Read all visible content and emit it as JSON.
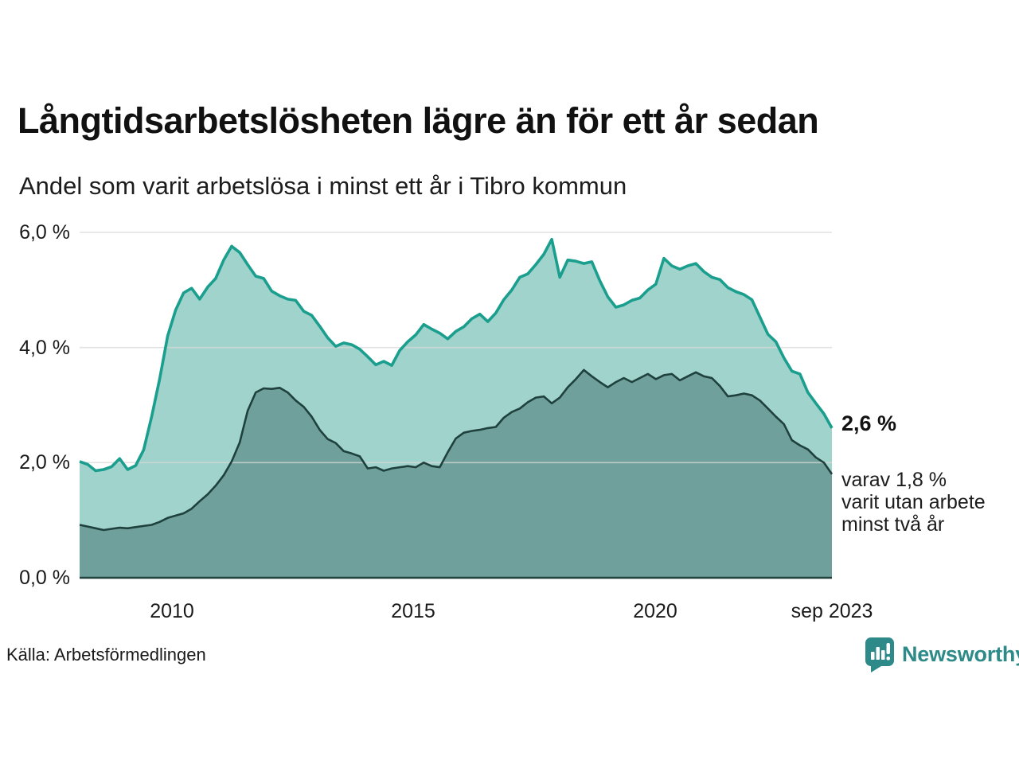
{
  "header": {
    "title": "Långtidsarbetslösheten lägre än för ett år sedan",
    "subtitle": "Andel som varit arbetslösa i minst ett år i Tibro kommun"
  },
  "annotations": {
    "latest_total": "2,6 %",
    "sub_lines": [
      "varav 1,8 %",
      "varit utan arbete",
      "minst två år"
    ]
  },
  "footer": {
    "source": "Källa: Arbetsförmedlingen",
    "brand": "Newsworthy"
  },
  "colors": {
    "total_stroke": "#1a9e8e",
    "total_fill": "#a0d3cb",
    "two_years_stroke": "#1f413d",
    "two_years_fill": "#70a09b",
    "gridline": "#d8d8d8",
    "baseline": "#22433f",
    "brand_teal": "#2d8a89"
  },
  "chart_data": {
    "type": "area",
    "title": "Långtidsarbetslösheten lägre än för ett år sedan",
    "subtitle": "Andel som varit arbetslösa i minst ett år i Tibro kommun",
    "unit": "%",
    "x_start": 2008.083,
    "x_end": 2023.667,
    "ylim": [
      0,
      6
    ],
    "grid": true,
    "legend_position": "none",
    "y_ticks": [
      {
        "label": "0,0 %",
        "value": 0
      },
      {
        "label": "2,0 %",
        "value": 2
      },
      {
        "label": "4,0 %",
        "value": 4
      },
      {
        "label": "6,0 %",
        "value": 6
      }
    ],
    "x_ticks": [
      {
        "label": "2010",
        "year": 2010
      },
      {
        "label": "2015",
        "year": 2015
      },
      {
        "label": "2020",
        "year": 2020
      },
      {
        "label": "sep 2023",
        "year": 2023.667
      }
    ],
    "series": [
      {
        "name": "arbetslösa minst ett år (totalt)",
        "latest_label": "2,6 %",
        "values": [
          2.02,
          1.97,
          1.86,
          1.88,
          1.93,
          2.07,
          1.88,
          1.95,
          2.22,
          2.8,
          3.45,
          4.2,
          4.65,
          4.95,
          5.03,
          4.84,
          5.05,
          5.2,
          5.52,
          5.76,
          5.65,
          5.44,
          5.24,
          5.2,
          4.98,
          4.9,
          4.84,
          4.82,
          4.63,
          4.56,
          4.37,
          4.17,
          4.02,
          4.08,
          4.05,
          3.97,
          3.84,
          3.7,
          3.76,
          3.69,
          3.95,
          4.1,
          4.22,
          4.4,
          4.32,
          4.25,
          4.15,
          4.28,
          4.36,
          4.5,
          4.58,
          4.45,
          4.6,
          4.83,
          5.0,
          5.22,
          5.28,
          5.44,
          5.62,
          5.88,
          5.22,
          5.52,
          5.5,
          5.46,
          5.49,
          5.16,
          4.88,
          4.7,
          4.74,
          4.82,
          4.86,
          5.0,
          5.1,
          5.55,
          5.42,
          5.36,
          5.42,
          5.46,
          5.32,
          5.22,
          5.18,
          5.04,
          4.97,
          4.92,
          4.83,
          4.53,
          4.23,
          4.1,
          3.82,
          3.59,
          3.54,
          3.22,
          3.03,
          2.85,
          2.6
        ]
      },
      {
        "name": "utan arbete minst två år",
        "latest_label": "1,8 %",
        "values": [
          0.92,
          0.89,
          0.86,
          0.83,
          0.85,
          0.87,
          0.86,
          0.88,
          0.9,
          0.92,
          0.97,
          1.04,
          1.08,
          1.12,
          1.2,
          1.33,
          1.45,
          1.6,
          1.78,
          2.02,
          2.35,
          2.9,
          3.22,
          3.29,
          3.28,
          3.3,
          3.22,
          3.08,
          2.97,
          2.8,
          2.57,
          2.41,
          2.34,
          2.2,
          2.16,
          2.11,
          1.9,
          1.92,
          1.86,
          1.9,
          1.92,
          1.94,
          1.92,
          2.0,
          1.94,
          1.92,
          2.18,
          2.42,
          2.52,
          2.55,
          2.57,
          2.6,
          2.62,
          2.78,
          2.88,
          2.94,
          3.05,
          3.13,
          3.15,
          3.03,
          3.13,
          3.31,
          3.45,
          3.61,
          3.5,
          3.4,
          3.31,
          3.4,
          3.47,
          3.4,
          3.47,
          3.54,
          3.45,
          3.52,
          3.54,
          3.43,
          3.5,
          3.57,
          3.5,
          3.47,
          3.33,
          3.15,
          3.17,
          3.2,
          3.17,
          3.08,
          2.94,
          2.8,
          2.67,
          2.39,
          2.3,
          2.23,
          2.09,
          2.0,
          1.8
        ]
      }
    ]
  }
}
